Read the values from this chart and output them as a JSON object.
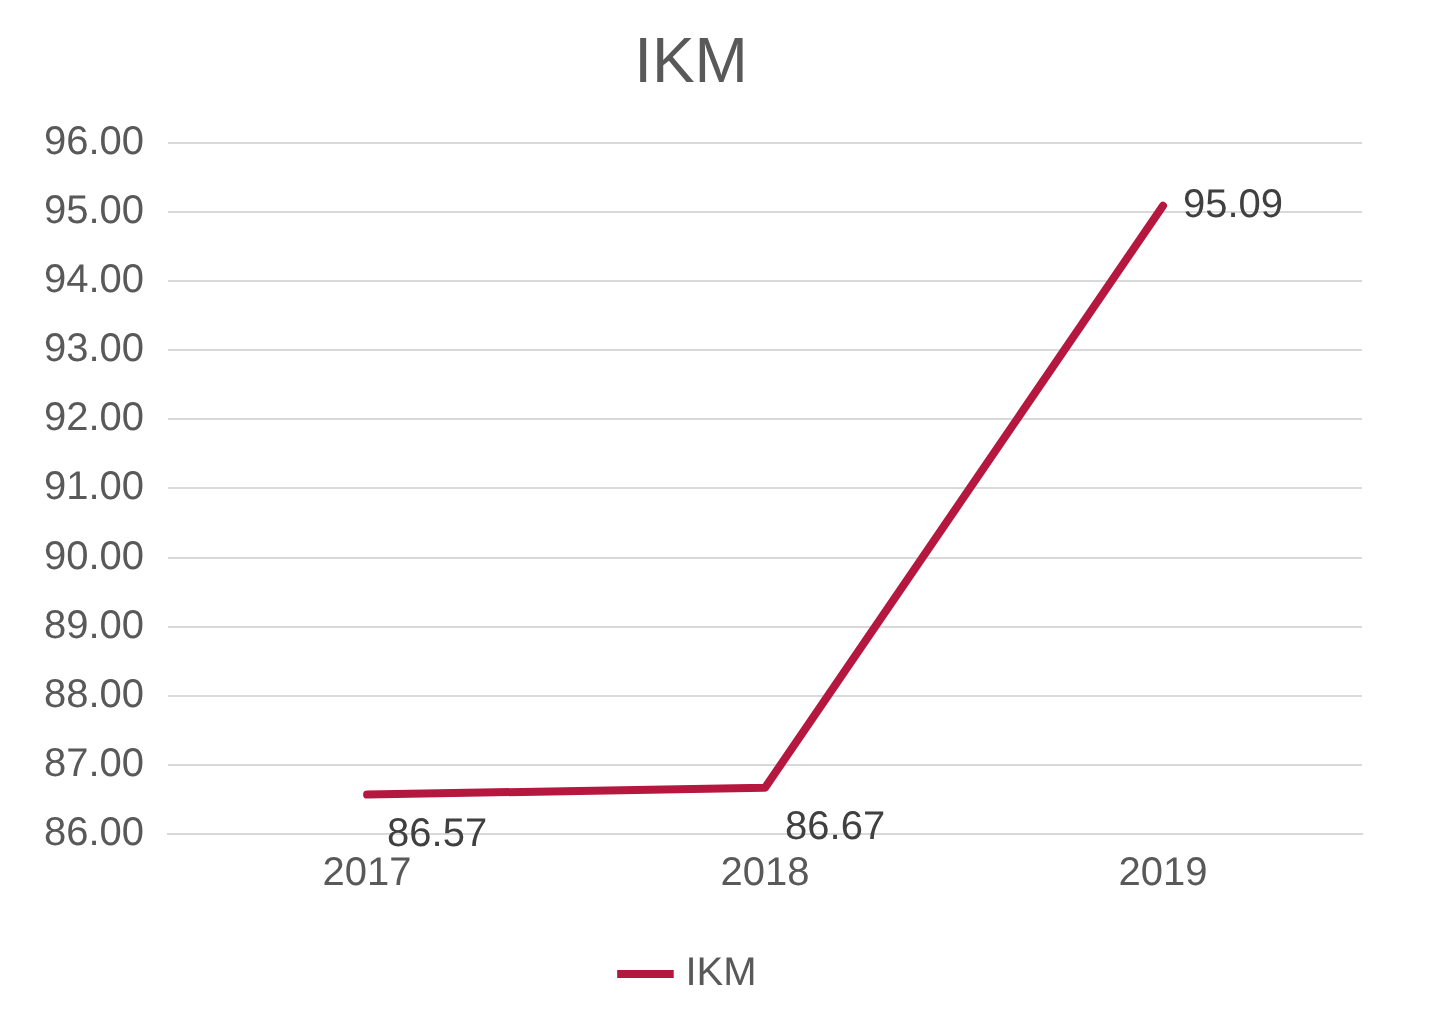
{
  "chart_data": {
    "type": "line",
    "title": "IKM",
    "categories": [
      "2017",
      "2018",
      "2019"
    ],
    "series": [
      {
        "name": "IKM",
        "color": "#b5173e",
        "values": [
          86.57,
          86.67,
          95.09
        ]
      }
    ],
    "ylim": [
      86,
      96
    ],
    "yticks": [
      {
        "value": 86,
        "label": "86.00"
      },
      {
        "value": 87,
        "label": "87.00"
      },
      {
        "value": 88,
        "label": "88.00"
      },
      {
        "value": 89,
        "label": "89.00"
      },
      {
        "value": 90,
        "label": "90.00"
      },
      {
        "value": 91,
        "label": "91.00"
      },
      {
        "value": 92,
        "label": "92.00"
      },
      {
        "value": 93,
        "label": "93.00"
      },
      {
        "value": 94,
        "label": "94.00"
      },
      {
        "value": 95,
        "label": "95.00"
      },
      {
        "value": 96,
        "label": "96.00"
      }
    ],
    "grid": "y",
    "legend": "bottom",
    "marker": "none",
    "line_style": "solid",
    "data_labels": true
  }
}
